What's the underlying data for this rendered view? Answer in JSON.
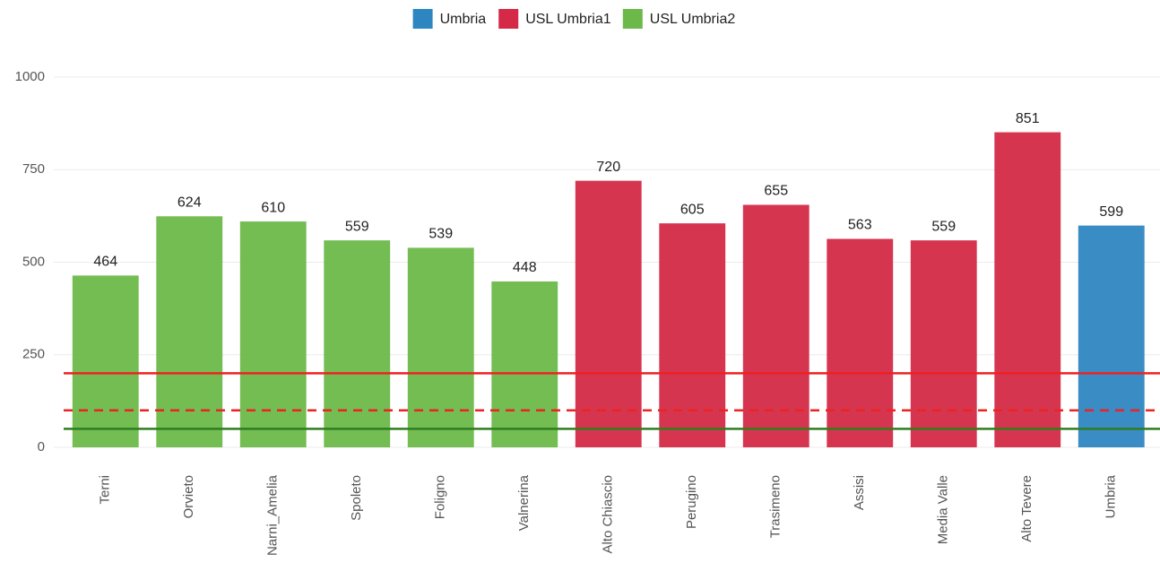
{
  "chart_data": {
    "type": "bar",
    "categories": [
      "Terni",
      "Orvieto",
      "Narni_Amelia",
      "Spoleto",
      "Foligno",
      "Valnerina",
      "Alto Chiascio",
      "Perugino",
      "Trasimeno",
      "Assisi",
      "Media Valle",
      "Alto Tevere",
      "Umbria"
    ],
    "series": [
      {
        "name": "Umbria",
        "color": "#2e86c1",
        "values": [
          null,
          null,
          null,
          null,
          null,
          null,
          null,
          null,
          null,
          null,
          null,
          null,
          599
        ]
      },
      {
        "name": "USL Umbria1",
        "color": "#d42a47",
        "values": [
          null,
          null,
          null,
          null,
          null,
          null,
          720,
          605,
          655,
          563,
          559,
          851,
          null
        ]
      },
      {
        "name": "USL Umbria2",
        "color": "#6cb94a",
        "values": [
          464,
          624,
          610,
          559,
          539,
          448,
          null,
          null,
          null,
          null,
          null,
          null,
          null
        ]
      }
    ],
    "ylim": [
      -50,
      1050
    ],
    "yticks": [
      0,
      250,
      500,
      750,
      1000
    ],
    "grid": true,
    "legend": "top",
    "reference_lines": [
      {
        "value": 200,
        "color": "#ee2222",
        "dashed": false
      },
      {
        "value": 100,
        "color": "#ee2222",
        "dashed": true
      },
      {
        "value": 50,
        "color": "#2e7d1f",
        "dashed": false
      }
    ]
  }
}
